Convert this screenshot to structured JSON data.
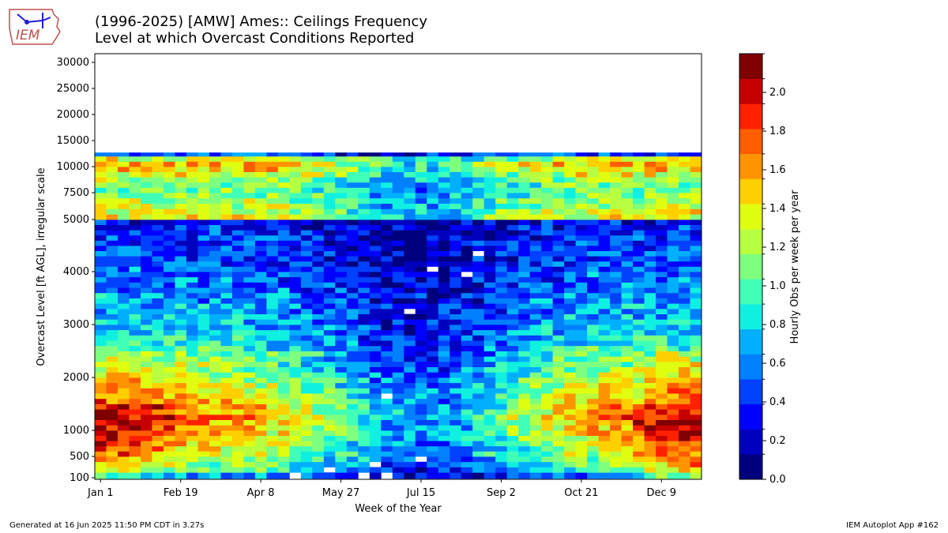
{
  "header": {
    "title_line1": "(1996-2025) [AMW] Ames:: Ceilings Frequency",
    "title_line2": "Level at which Overcast Conditions Reported",
    "logo_text": "IEM"
  },
  "footer": {
    "left": "Generated at 16 Jun 2025 11:50 PM CDT in 3.27s",
    "right": "IEM Autoplot App #162"
  },
  "colors": {
    "colormap": [
      "#00007f",
      "#0000bf",
      "#0000ff",
      "#0040ff",
      "#0080ff",
      "#00b0ff",
      "#10f0e0",
      "#40ffb7",
      "#7fff7f",
      "#b7ff40",
      "#e0ff10",
      "#ffd000",
      "#ff9400",
      "#ff5d00",
      "#ff2000",
      "#c60000",
      "#7f0000"
    ]
  },
  "chart_data": {
    "type": "heatmap",
    "title": "(1996-2025) [AMW] Ames:: Ceilings Frequency",
    "subtitle": "Level at which Overcast Conditions Reported",
    "xlabel": "Week of the Year",
    "ylabel": "Overcast Level [ft AGL], irregular scale",
    "x_ticks": [
      "Jan 1",
      "Feb 19",
      "Apr 8",
      "May 27",
      "Jul 15",
      "Sep 2",
      "Oct 21",
      "Dec 9"
    ],
    "x_tick_weeks": [
      1,
      8,
      15,
      22,
      29,
      36,
      43,
      50
    ],
    "weeks": 53,
    "y_ticks": [
      "100",
      "500",
      "1000",
      "2000",
      "3000",
      "4000",
      "5000",
      "7500",
      "10000",
      "15000",
      "20000",
      "25000",
      "30000"
    ],
    "y_tick_levels": [
      100,
      500,
      1000,
      2000,
      3000,
      4000,
      5000,
      7500,
      10000,
      15000,
      20000,
      25000,
      30000
    ],
    "rows": [
      {
        "level": 100,
        "intensity": 0.55
      },
      {
        "level": 200,
        "intensity": 0.95
      },
      {
        "level": 300,
        "intensity": 1.05
      },
      {
        "level": 400,
        "intensity": 1.15
      },
      {
        "level": 500,
        "intensity": 1.25
      },
      {
        "level": 600,
        "intensity": 1.3
      },
      {
        "level": 700,
        "intensity": 1.35
      },
      {
        "level": 800,
        "intensity": 1.4
      },
      {
        "level": 900,
        "intensity": 1.45
      },
      {
        "level": 1000,
        "intensity": 1.5
      },
      {
        "level": 1100,
        "intensity": 1.6
      },
      {
        "level": 1200,
        "intensity": 1.6
      },
      {
        "level": 1300,
        "intensity": 1.55
      },
      {
        "level": 1400,
        "intensity": 1.5
      },
      {
        "level": 1500,
        "intensity": 1.45
      },
      {
        "level": 1600,
        "intensity": 1.4
      },
      {
        "level": 1700,
        "intensity": 1.35
      },
      {
        "level": 1800,
        "intensity": 1.3
      },
      {
        "level": 1900,
        "intensity": 1.25
      },
      {
        "level": 2000,
        "intensity": 1.2
      },
      {
        "level": 2100,
        "intensity": 1.15
      },
      {
        "level": 2200,
        "intensity": 1.1
      },
      {
        "level": 2300,
        "intensity": 1.05
      },
      {
        "level": 2400,
        "intensity": 1.0
      },
      {
        "level": 2500,
        "intensity": 0.95
      },
      {
        "level": 2600,
        "intensity": 0.9
      },
      {
        "level": 2700,
        "intensity": 0.85
      },
      {
        "level": 2800,
        "intensity": 0.8
      },
      {
        "level": 2900,
        "intensity": 0.8
      },
      {
        "level": 3000,
        "intensity": 0.75
      },
      {
        "level": 3100,
        "intensity": 0.75
      },
      {
        "level": 3200,
        "intensity": 0.7
      },
      {
        "level": 3300,
        "intensity": 0.7
      },
      {
        "level": 3400,
        "intensity": 0.65
      },
      {
        "level": 3500,
        "intensity": 0.65
      },
      {
        "level": 3600,
        "intensity": 0.6
      },
      {
        "level": 3700,
        "intensity": 0.6
      },
      {
        "level": 3800,
        "intensity": 0.55
      },
      {
        "level": 3900,
        "intensity": 0.55
      },
      {
        "level": 4000,
        "intensity": 0.55
      },
      {
        "level": 4100,
        "intensity": 0.5
      },
      {
        "level": 4200,
        "intensity": 0.5
      },
      {
        "level": 4300,
        "intensity": 0.5
      },
      {
        "level": 4400,
        "intensity": 0.45
      },
      {
        "level": 4500,
        "intensity": 0.45
      },
      {
        "level": 4600,
        "intensity": 0.45
      },
      {
        "level": 4700,
        "intensity": 0.4
      },
      {
        "level": 4800,
        "intensity": 0.4
      },
      {
        "level": 4900,
        "intensity": 0.35
      },
      {
        "level": 5000,
        "intensity": 1.4
      },
      {
        "level": 5500,
        "intensity": 1.3
      },
      {
        "level": 6000,
        "intensity": 1.25
      },
      {
        "level": 6500,
        "intensity": 1.2
      },
      {
        "level": 7000,
        "intensity": 1.15
      },
      {
        "level": 7500,
        "intensity": 1.1
      },
      {
        "level": 8000,
        "intensity": 1.1
      },
      {
        "level": 8500,
        "intensity": 1.2
      },
      {
        "level": 9000,
        "intensity": 1.35
      },
      {
        "level": 9500,
        "intensity": 1.5
      },
      {
        "level": 10000,
        "intensity": 1.6
      },
      {
        "level": 11000,
        "intensity": 1.35
      },
      {
        "level": 12000,
        "intensity": 0.5
      }
    ],
    "summer_dip": {
      "center_week": 29,
      "width_weeks": 9,
      "depth": 0.6,
      "applies_below_level": 5000
    },
    "upper_summer_dip": {
      "center_week": 29,
      "width_weeks": 8,
      "depth": 0.45
    },
    "missing_cells": [
      {
        "week": 24,
        "level": 100
      },
      {
        "week": 26,
        "level": 100
      },
      {
        "week": 25,
        "level": 300
      },
      {
        "week": 29,
        "level": 400
      },
      {
        "week": 26,
        "level": 1600
      },
      {
        "week": 28,
        "level": 3200
      },
      {
        "week": 30,
        "level": 4000
      },
      {
        "week": 33,
        "level": 3900
      },
      {
        "week": 34,
        "level": 4300
      },
      {
        "week": 21,
        "level": 200
      },
      {
        "week": 18,
        "level": 100
      }
    ],
    "colorbar": {
      "label": "Hourly Obs per week per year",
      "min": 0.0,
      "max": 2.2,
      "levels": 17,
      "ticks": [
        "0.0",
        "0.2",
        "0.4",
        "0.6",
        "0.8",
        "1.0",
        "1.2",
        "1.4",
        "1.6",
        "1.8",
        "2.0"
      ],
      "tick_values": [
        0.0,
        0.2,
        0.4,
        0.6,
        0.8,
        1.0,
        1.2,
        1.4,
        1.6,
        1.8,
        2.0
      ]
    }
  }
}
